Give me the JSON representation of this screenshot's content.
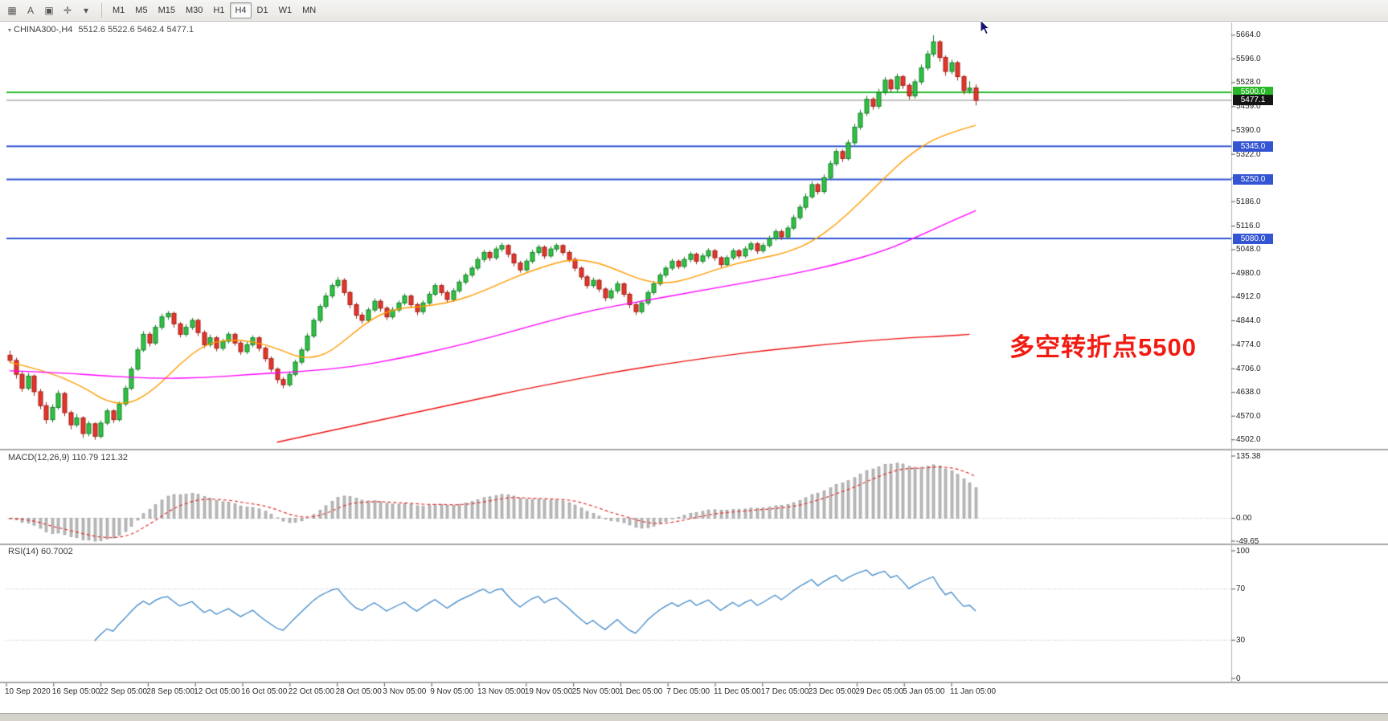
{
  "toolbar": {
    "tools": [
      {
        "name": "chart-grid-icon",
        "glyph": "▦"
      },
      {
        "name": "text-label-tool-icon",
        "glyph": "A"
      },
      {
        "name": "text-box-tool-icon",
        "glyph": "▣"
      },
      {
        "name": "crosshair-tool-icon",
        "glyph": "✛"
      },
      {
        "name": "drawing-tools-dropdown-icon",
        "glyph": "▾"
      }
    ],
    "timeframes": [
      "M1",
      "M5",
      "M15",
      "M30",
      "H1",
      "H4",
      "D1",
      "W1",
      "MN"
    ],
    "active_timeframe": "H4"
  },
  "chart_data": {
    "type": "candlestick",
    "symbol": "CHINA300-",
    "timeframe": "H4",
    "title": "CHINA300-,H4",
    "quote_ohlc": "5512.6 5522.6 5462.4 5477.1",
    "symbol_marker_glyph": "▾",
    "annotation": {
      "text": "多空转折点5500",
      "color": "#f11b12"
    },
    "ylim": [
      4483,
      5696
    ],
    "grid": false,
    "up_color": "#2fc242",
    "down_color": "#e5352b",
    "price_axis_labels": [
      "5664.0",
      "5596.0",
      "5528.0",
      "5459.0",
      "5390.0",
      "5322.0",
      "5254.0",
      "5186.0",
      "5116.0",
      "5048.0",
      "4980.0",
      "4912.0",
      "4844.0",
      "4774.0",
      "4706.0",
      "4638.0",
      "4570.0",
      "4502.0"
    ],
    "horizontal_lines": [
      {
        "label": "5500.0",
        "price": 5500.0,
        "color": "#28b828"
      },
      {
        "label": "5345.0",
        "price": 5345.0,
        "color": "#3355d4"
      },
      {
        "label": "5250.0",
        "price": 5250.0,
        "color": "#3355d4"
      },
      {
        "label": "5080.0",
        "price": 5080.0,
        "color": "#3355d4"
      }
    ],
    "current_price": {
      "label": "5477.1",
      "price": 5477.1,
      "badge_color": "#141414",
      "line_color": "#808080"
    },
    "time_axis_labels": [
      "10 Sep 2020",
      "16 Sep 05:00",
      "22 Sep 05:00",
      "28 Sep 05:00",
      "12 Oct 05:00",
      "16 Oct 05:00",
      "22 Oct 05:00",
      "28 Oct 05:00",
      "3 Nov 05:00",
      "9 Nov 05:00",
      "13 Nov 05:00",
      "19 Nov 05:00",
      "25 Nov 05:00",
      "1 Dec 05:00",
      "7 Dec 05:00",
      "11 Dec 05:00",
      "17 Dec 05:00",
      "23 Dec 05:00",
      "29 Dec 05:00",
      "5 Jan 05:00",
      "11 Jan 05:00"
    ],
    "moving_averages": [
      {
        "name": "ma-fast-orange",
        "color": "#ff9c00",
        "points": [
          [
            0,
            4725
          ],
          [
            6,
            4700
          ],
          [
            12,
            4655
          ],
          [
            16,
            4610
          ],
          [
            20,
            4605
          ],
          [
            24,
            4650
          ],
          [
            28,
            4720
          ],
          [
            32,
            4775
          ],
          [
            36,
            4790
          ],
          [
            40,
            4785
          ],
          [
            44,
            4765
          ],
          [
            48,
            4735
          ],
          [
            52,
            4745
          ],
          [
            56,
            4800
          ],
          [
            60,
            4855
          ],
          [
            64,
            4880
          ],
          [
            68,
            4885
          ],
          [
            72,
            4895
          ],
          [
            76,
            4915
          ],
          [
            80,
            4945
          ],
          [
            84,
            4975
          ],
          [
            88,
            5000
          ],
          [
            92,
            5020
          ],
          [
            96,
            5015
          ],
          [
            100,
            4990
          ],
          [
            104,
            4960
          ],
          [
            108,
            4950
          ],
          [
            112,
            4965
          ],
          [
            116,
            4990
          ],
          [
            120,
            5010
          ],
          [
            124,
            5025
          ],
          [
            128,
            5040
          ],
          [
            132,
            5070
          ],
          [
            136,
            5120
          ],
          [
            140,
            5185
          ],
          [
            144,
            5255
          ],
          [
            148,
            5320
          ],
          [
            152,
            5365
          ],
          [
            156,
            5390
          ],
          [
            159,
            5405
          ]
        ]
      },
      {
        "name": "ma-mid-magenta",
        "color": "#ff00ff",
        "points": [
          [
            0,
            4700
          ],
          [
            8,
            4695
          ],
          [
            16,
            4685
          ],
          [
            24,
            4678
          ],
          [
            32,
            4680
          ],
          [
            40,
            4690
          ],
          [
            48,
            4698
          ],
          [
            56,
            4710
          ],
          [
            64,
            4735
          ],
          [
            72,
            4765
          ],
          [
            80,
            4800
          ],
          [
            88,
            4840
          ],
          [
            96,
            4875
          ],
          [
            104,
            4900
          ],
          [
            112,
            4925
          ],
          [
            120,
            4950
          ],
          [
            128,
            4975
          ],
          [
            136,
            5005
          ],
          [
            144,
            5045
          ],
          [
            150,
            5090
          ],
          [
            155,
            5130
          ],
          [
            159,
            5160
          ]
        ]
      },
      {
        "name": "ma-slow-red",
        "color": "#ee1111",
        "points": [
          [
            44,
            4495
          ],
          [
            52,
            4525
          ],
          [
            60,
            4555
          ],
          [
            68,
            4585
          ],
          [
            76,
            4615
          ],
          [
            84,
            4645
          ],
          [
            92,
            4672
          ],
          [
            100,
            4698
          ],
          [
            108,
            4720
          ],
          [
            116,
            4740
          ],
          [
            124,
            4758
          ],
          [
            132,
            4772
          ],
          [
            140,
            4785
          ],
          [
            148,
            4795
          ],
          [
            154,
            4800
          ],
          [
            158,
            4805
          ]
        ]
      }
    ],
    "candles": [
      [
        4745,
        4758,
        4722,
        4730
      ],
      [
        4730,
        4738,
        4678,
        4690
      ],
      [
        4690,
        4698,
        4640,
        4650
      ],
      [
        4650,
        4694,
        4644,
        4685
      ],
      [
        4685,
        4690,
        4628,
        4640
      ],
      [
        4640,
        4648,
        4590,
        4600
      ],
      [
        4600,
        4610,
        4548,
        4560
      ],
      [
        4560,
        4604,
        4552,
        4595
      ],
      [
        4595,
        4644,
        4588,
        4635
      ],
      [
        4635,
        4640,
        4570,
        4580
      ],
      [
        4580,
        4586,
        4532,
        4545
      ],
      [
        4545,
        4576,
        4538,
        4565
      ],
      [
        4565,
        4570,
        4508,
        4520
      ],
      [
        4520,
        4556,
        4512,
        4548
      ],
      [
        4548,
        4552,
        4502,
        4512
      ],
      [
        4512,
        4558,
        4506,
        4550
      ],
      [
        4550,
        4592,
        4544,
        4585
      ],
      [
        4585,
        4590,
        4550,
        4560
      ],
      [
        4560,
        4612,
        4554,
        4605
      ],
      [
        4605,
        4658,
        4598,
        4650
      ],
      [
        4650,
        4712,
        4644,
        4705
      ],
      [
        4705,
        4768,
        4700,
        4760
      ],
      [
        4760,
        4814,
        4754,
        4805
      ],
      [
        4805,
        4812,
        4770,
        4780
      ],
      [
        4780,
        4832,
        4774,
        4825
      ],
      [
        4825,
        4864,
        4818,
        4855
      ],
      [
        4855,
        4872,
        4846,
        4865
      ],
      [
        4865,
        4870,
        4824,
        4835
      ],
      [
        4835,
        4840,
        4796,
        4805
      ],
      [
        4805,
        4834,
        4798,
        4825
      ],
      [
        4825,
        4852,
        4818,
        4845
      ],
      [
        4845,
        4850,
        4800,
        4810
      ],
      [
        4810,
        4816,
        4766,
        4775
      ],
      [
        4775,
        4804,
        4768,
        4795
      ],
      [
        4795,
        4800,
        4756,
        4765
      ],
      [
        4765,
        4792,
        4758,
        4785
      ],
      [
        4785,
        4812,
        4778,
        4805
      ],
      [
        4805,
        4810,
        4772,
        4780
      ],
      [
        4780,
        4786,
        4746,
        4755
      ],
      [
        4755,
        4784,
        4748,
        4775
      ],
      [
        4775,
        4802,
        4768,
        4795
      ],
      [
        4795,
        4800,
        4756,
        4765
      ],
      [
        4765,
        4770,
        4726,
        4735
      ],
      [
        4735,
        4742,
        4696,
        4705
      ],
      [
        4705,
        4710,
        4664,
        4675
      ],
      [
        4675,
        4682,
        4650,
        4660
      ],
      [
        4660,
        4698,
        4654,
        4690
      ],
      [
        4690,
        4732,
        4684,
        4725
      ],
      [
        4725,
        4768,
        4718,
        4760
      ],
      [
        4760,
        4808,
        4754,
        4800
      ],
      [
        4800,
        4852,
        4794,
        4845
      ],
      [
        4845,
        4892,
        4838,
        4885
      ],
      [
        4885,
        4924,
        4878,
        4915
      ],
      [
        4915,
        4952,
        4908,
        4945
      ],
      [
        4945,
        4970,
        4938,
        4960
      ],
      [
        4960,
        4966,
        4916,
        4925
      ],
      [
        4925,
        4930,
        4880,
        4890
      ],
      [
        4890,
        4896,
        4850,
        4860
      ],
      [
        4860,
        4868,
        4836,
        4845
      ],
      [
        4845,
        4882,
        4838,
        4875
      ],
      [
        4875,
        4908,
        4868,
        4900
      ],
      [
        4900,
        4906,
        4870,
        4880
      ],
      [
        4880,
        4886,
        4846,
        4855
      ],
      [
        4855,
        4884,
        4848,
        4875
      ],
      [
        4875,
        4902,
        4868,
        4895
      ],
      [
        4895,
        4922,
        4888,
        4915
      ],
      [
        4915,
        4920,
        4880,
        4890
      ],
      [
        4890,
        4896,
        4860,
        4870
      ],
      [
        4870,
        4902,
        4862,
        4895
      ],
      [
        4895,
        4928,
        4888,
        4920
      ],
      [
        4920,
        4952,
        4914,
        4945
      ],
      [
        4945,
        4950,
        4916,
        4925
      ],
      [
        4925,
        4932,
        4896,
        4905
      ],
      [
        4905,
        4938,
        4898,
        4930
      ],
      [
        4930,
        4962,
        4924,
        4955
      ],
      [
        4955,
        4982,
        4948,
        4975
      ],
      [
        4975,
        5002,
        4968,
        4995
      ],
      [
        4995,
        5028,
        4988,
        5020
      ],
      [
        5020,
        5048,
        5012,
        5040
      ],
      [
        5040,
        5046,
        5016,
        5025
      ],
      [
        5025,
        5058,
        5018,
        5050
      ],
      [
        5050,
        5068,
        5042,
        5060
      ],
      [
        5060,
        5064,
        5026,
        5035
      ],
      [
        5035,
        5040,
        5000,
        5010
      ],
      [
        5010,
        5016,
        4982,
        4990
      ],
      [
        4990,
        5022,
        4984,
        5015
      ],
      [
        5015,
        5048,
        5008,
        5040
      ],
      [
        5040,
        5062,
        5032,
        5055
      ],
      [
        5055,
        5060,
        5022,
        5030
      ],
      [
        5030,
        5058,
        5024,
        5050
      ],
      [
        5050,
        5066,
        5042,
        5060
      ],
      [
        5060,
        5064,
        5032,
        5040
      ],
      [
        5040,
        5046,
        5012,
        5020
      ],
      [
        5020,
        5026,
        4986,
        4995
      ],
      [
        4995,
        5000,
        4962,
        4970
      ],
      [
        4970,
        4976,
        4936,
        4945
      ],
      [
        4945,
        4968,
        4938,
        4960
      ],
      [
        4960,
        4964,
        4926,
        4935
      ],
      [
        4935,
        4940,
        4900,
        4910
      ],
      [
        4910,
        4938,
        4904,
        4930
      ],
      [
        4930,
        4958,
        4922,
        4950
      ],
      [
        4950,
        4954,
        4912,
        4920
      ],
      [
        4920,
        4926,
        4880,
        4890
      ],
      [
        4890,
        4896,
        4860,
        4870
      ],
      [
        4870,
        4902,
        4864,
        4895
      ],
      [
        4895,
        4932,
        4888,
        4925
      ],
      [
        4925,
        4958,
        4918,
        4950
      ],
      [
        4950,
        4982,
        4944,
        4975
      ],
      [
        4975,
        5002,
        4968,
        4995
      ],
      [
        4995,
        5022,
        4988,
        5015
      ],
      [
        5015,
        5020,
        4992,
        5000
      ],
      [
        5000,
        5028,
        4994,
        5020
      ],
      [
        5020,
        5042,
        5012,
        5035
      ],
      [
        5035,
        5040,
        5006,
        5015
      ],
      [
        5015,
        5038,
        5008,
        5030
      ],
      [
        5030,
        5052,
        5022,
        5045
      ],
      [
        5045,
        5050,
        5016,
        5025
      ],
      [
        5025,
        5030,
        4996,
        5005
      ],
      [
        5005,
        5032,
        4998,
        5025
      ],
      [
        5025,
        5052,
        5018,
        5045
      ],
      [
        5045,
        5050,
        5022,
        5030
      ],
      [
        5030,
        5058,
        5024,
        5050
      ],
      [
        5050,
        5072,
        5044,
        5065
      ],
      [
        5065,
        5070,
        5036,
        5045
      ],
      [
        5045,
        5068,
        5038,
        5060
      ],
      [
        5060,
        5088,
        5054,
        5080
      ],
      [
        5080,
        5108,
        5074,
        5100
      ],
      [
        5100,
        5106,
        5076,
        5085
      ],
      [
        5085,
        5118,
        5078,
        5110
      ],
      [
        5110,
        5148,
        5104,
        5140
      ],
      [
        5140,
        5178,
        5134,
        5170
      ],
      [
        5170,
        5210,
        5162,
        5200
      ],
      [
        5200,
        5244,
        5194,
        5235
      ],
      [
        5235,
        5240,
        5206,
        5215
      ],
      [
        5215,
        5264,
        5208,
        5255
      ],
      [
        5255,
        5304,
        5248,
        5295
      ],
      [
        5295,
        5338,
        5288,
        5330
      ],
      [
        5330,
        5336,
        5300,
        5310
      ],
      [
        5310,
        5364,
        5304,
        5355
      ],
      [
        5355,
        5410,
        5348,
        5400
      ],
      [
        5400,
        5450,
        5392,
        5440
      ],
      [
        5440,
        5490,
        5432,
        5480
      ],
      [
        5480,
        5486,
        5450,
        5460
      ],
      [
        5460,
        5510,
        5452,
        5500
      ],
      [
        5500,
        5544,
        5492,
        5535
      ],
      [
        5535,
        5540,
        5500,
        5510
      ],
      [
        5510,
        5554,
        5502,
        5545
      ],
      [
        5545,
        5550,
        5510,
        5520
      ],
      [
        5520,
        5526,
        5480,
        5490
      ],
      [
        5490,
        5538,
        5482,
        5530
      ],
      [
        5530,
        5580,
        5522,
        5570
      ],
      [
        5570,
        5620,
        5562,
        5610
      ],
      [
        5610,
        5664,
        5602,
        5645
      ],
      [
        5645,
        5650,
        5588,
        5600
      ],
      [
        5600,
        5606,
        5548,
        5560
      ],
      [
        5560,
        5594,
        5552,
        5585
      ],
      [
        5585,
        5590,
        5534,
        5545
      ],
      [
        5545,
        5550,
        5494,
        5505
      ],
      [
        5505,
        5532,
        5496,
        5512
      ],
      [
        5512.6,
        5522.6,
        5462.4,
        5477.1
      ]
    ]
  },
  "macd": {
    "label": "MACD(12,26,9) 110.79 121.32",
    "fast": 12,
    "slow": 26,
    "signal": 9,
    "scale_max": 135.38,
    "scale_min": -49.65,
    "axis_labels": [
      {
        "text": "135.38",
        "value": 135.38
      },
      {
        "text": "0.00",
        "value": 0
      },
      {
        "text": "-49.65",
        "value": -49.65
      }
    ],
    "histogram_color": "#bdbdbd",
    "signal_color": "#e03131"
  },
  "rsi": {
    "label": "RSI(14) 60.7002",
    "period": 14,
    "axis_labels": [
      {
        "text": "100",
        "value": 100
      },
      {
        "text": "70",
        "value": 70
      },
      {
        "text": "30",
        "value": 30
      },
      {
        "text": "0",
        "value": 0
      }
    ],
    "levels": [
      70,
      30
    ],
    "line_color": "#3f87c9"
  }
}
